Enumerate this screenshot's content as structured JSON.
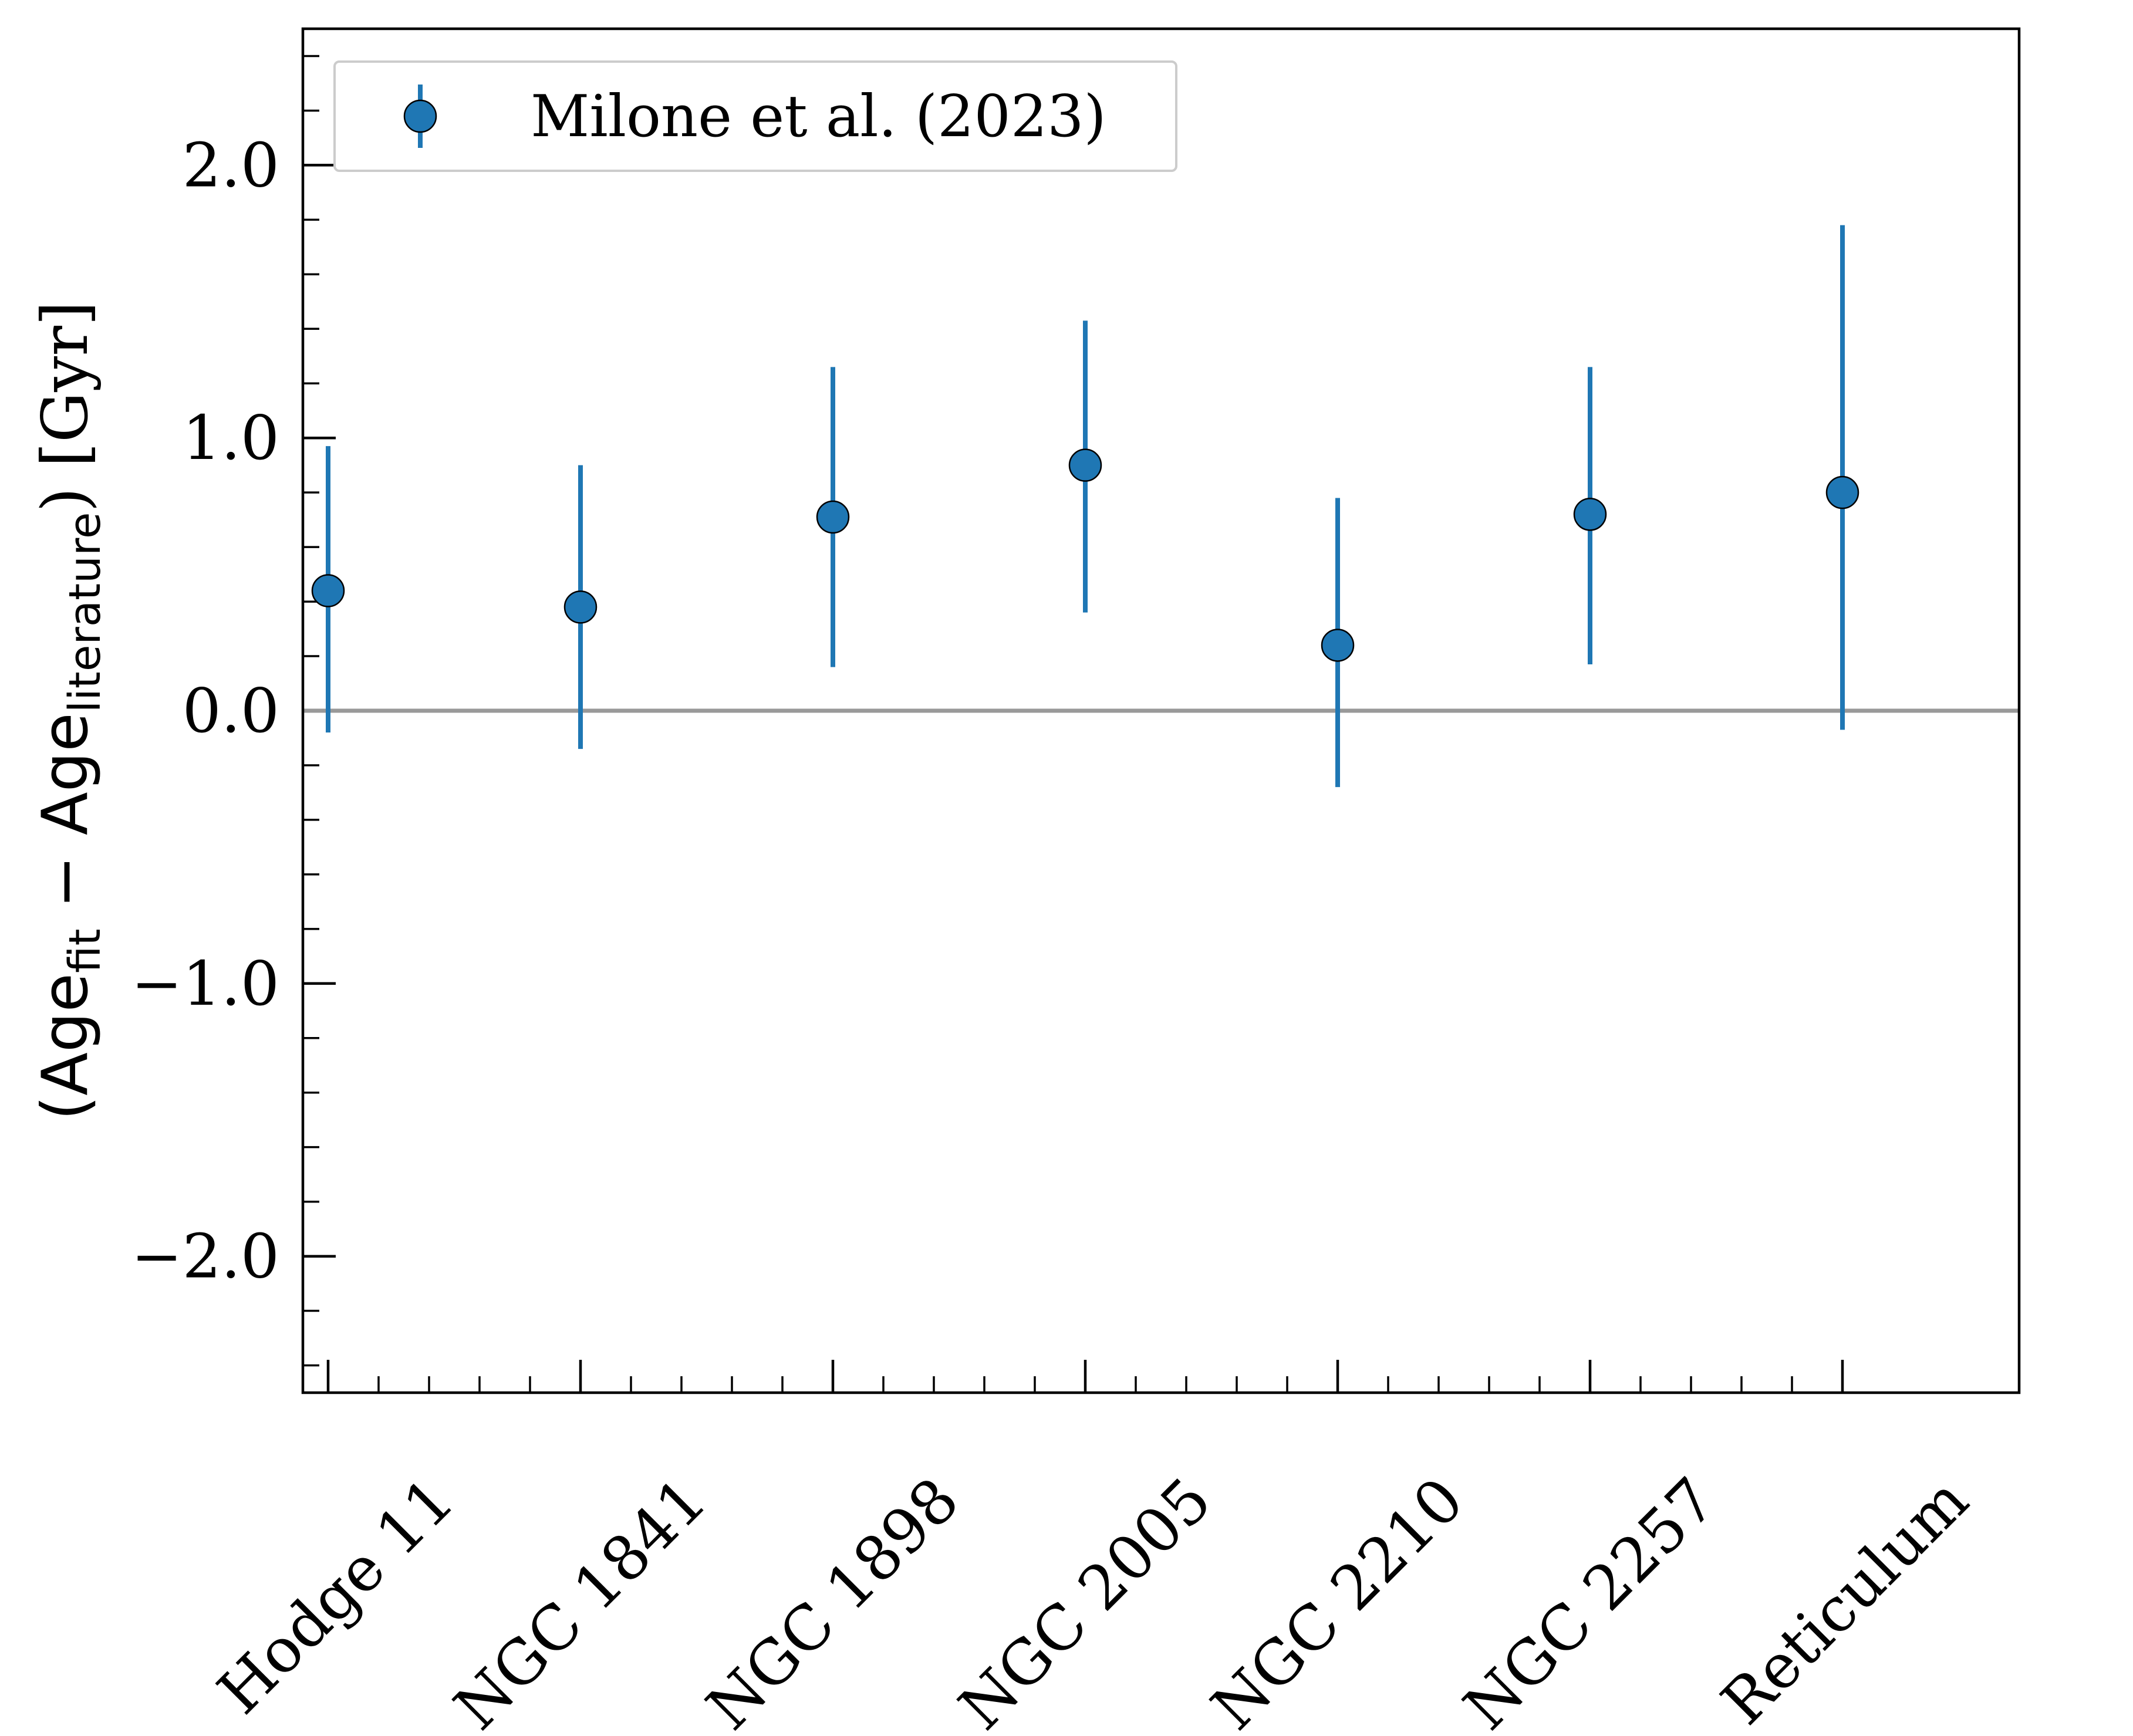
{
  "chart_data": {
    "type": "scatter",
    "categories": [
      "Hodge 11",
      "NGC 1841",
      "NGC 1898",
      "NGC 2005",
      "NGC 2210",
      "NGC 2257",
      "Reticulum"
    ],
    "series": [
      {
        "name": "Milone et al. (2023)",
        "values": [
          0.44,
          0.38,
          0.71,
          0.9,
          0.24,
          0.72,
          0.8
        ],
        "err_low": [
          0.52,
          0.52,
          0.55,
          0.54,
          0.52,
          0.55,
          0.87
        ],
        "err_high": [
          0.53,
          0.52,
          0.55,
          0.53,
          0.54,
          0.54,
          0.98
        ],
        "color": "#1f77b4"
      }
    ],
    "ylabel": {
      "prefix": "(Age",
      "sub1": "fit",
      "mid": " − Age",
      "sub2": "literature",
      "suffix": ") [Gyr]"
    },
    "xlabel": "",
    "ylim": [
      -2.5,
      2.5
    ],
    "yticks": [
      2.0,
      1.0,
      0.0,
      -1.0,
      -2.0
    ],
    "ytick_labels": [
      "2.0",
      "1.0",
      "0.0",
      "−1.0",
      "−2.0"
    ],
    "reference_line": {
      "y": 0.0,
      "color": "#999999"
    },
    "grid": false,
    "legend_position": "upper-left"
  }
}
